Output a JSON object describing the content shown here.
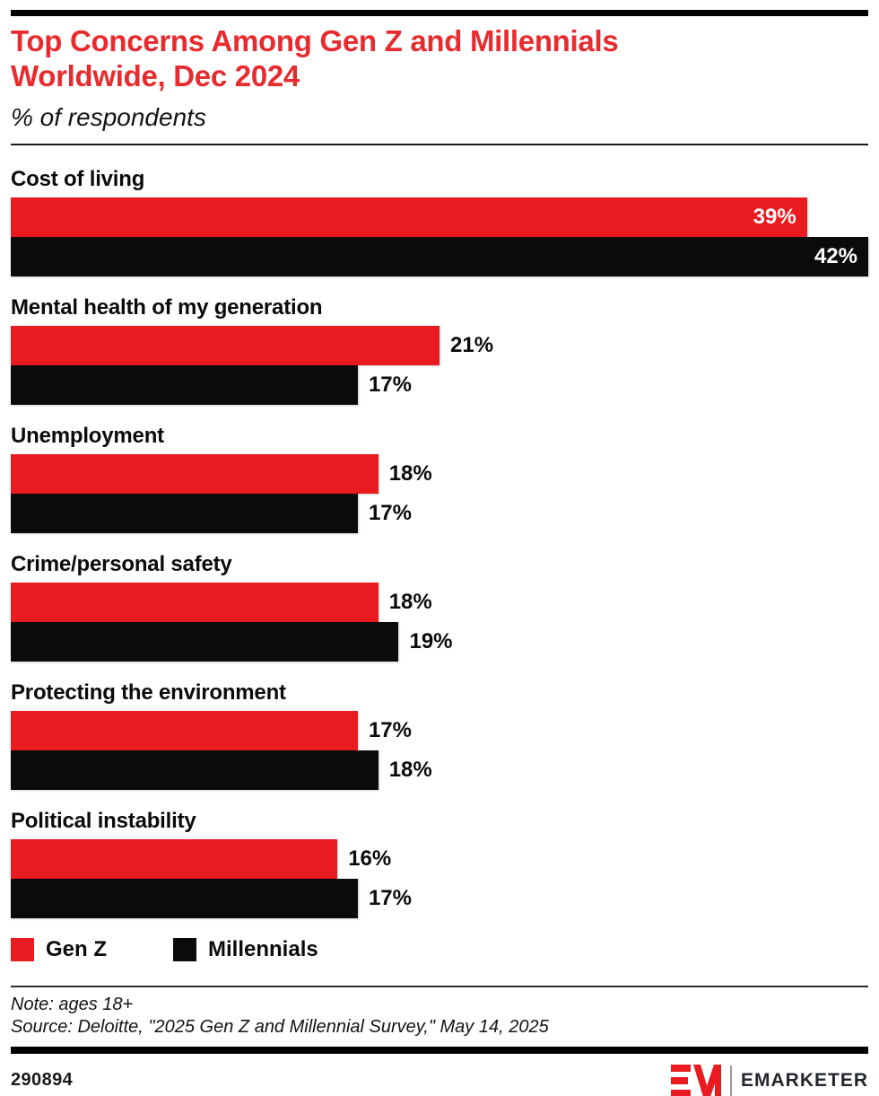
{
  "header": {
    "title": "Top Concerns Among Gen Z and Millennials Worldwide, Dec 2024",
    "subtitle": "% of respondents"
  },
  "chart_data": {
    "type": "bar",
    "orientation": "horizontal",
    "title": "Top Concerns Among Gen Z and Millennials Worldwide, Dec 2024",
    "subtitle": "% of respondents",
    "categories": [
      "Cost of living",
      "Mental health of my generation",
      "Unemployment",
      "Crime/personal safety",
      "Protecting the environment",
      "Political instability"
    ],
    "series": [
      {
        "name": "Gen Z",
        "color": "#EA1A21",
        "values": [
          39,
          21,
          18,
          18,
          17,
          16
        ]
      },
      {
        "name": "Millennials",
        "color": "#0B0B0B",
        "values": [
          42,
          17,
          17,
          19,
          18,
          17
        ]
      }
    ],
    "value_suffix": "%",
    "xlim": [
      0,
      42
    ],
    "grid": false,
    "legend_position": "bottom",
    "value_label_inside_threshold": 0.8
  },
  "legend": [
    {
      "label": "Gen Z",
      "color": "#EA1A21"
    },
    {
      "label": "Millennials",
      "color": "#0B0B0B"
    }
  ],
  "footer": {
    "note": "Note: ages 18+",
    "source": "Source: Deloitte, \"2025 Gen Z and Millennial Survey,\" May 14, 2025",
    "chart_id": "290894",
    "brand": "EMARKETER"
  },
  "colors": {
    "title_red": "#E72B2E",
    "bar_red": "#EA1A21",
    "bar_black": "#0B0B0B",
    "rule_black": "#000000"
  }
}
